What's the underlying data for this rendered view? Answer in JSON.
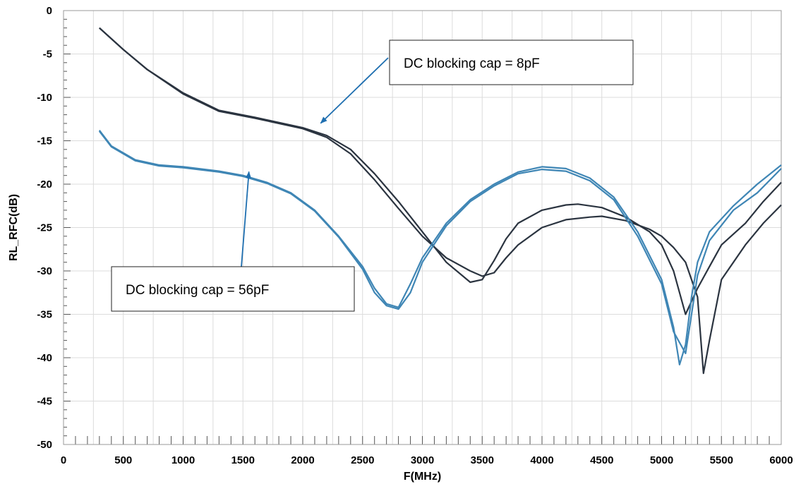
{
  "chart_data": {
    "type": "line",
    "title": "",
    "xlabel": "F(MHz)",
    "ylabel": "RL_RFC(dB)",
    "xlim": [
      0,
      6000
    ],
    "ylim": [
      -50,
      0
    ],
    "x_ticks": [
      0,
      500,
      1000,
      1500,
      2000,
      2500,
      3000,
      3500,
      4000,
      4500,
      5000,
      5500,
      6000
    ],
    "y_ticks": [
      0,
      -5,
      -10,
      -15,
      -20,
      -25,
      -30,
      -35,
      -40,
      -45,
      -50
    ],
    "grid": true,
    "colors": {
      "cap_8pF": "#2b3440",
      "cap_56pF": "#3f86b5",
      "arrow": "#1f6fb0",
      "grid": "#dcdcdc"
    },
    "series": [
      {
        "group": "cap_8pF",
        "x": [
          300,
          500,
          700,
          1000,
          1300,
          1600,
          2000,
          2200,
          2400,
          2600,
          2800,
          3000,
          3200,
          3400,
          3500,
          3600,
          3700,
          3800,
          4000,
          4200,
          4300,
          4500,
          4700,
          4900,
          5000,
          5100,
          5200,
          5300,
          5400,
          5500,
          5700,
          5850,
          6000
        ],
        "y": [
          -2.0,
          -4.5,
          -6.8,
          -9.5,
          -11.5,
          -12.3,
          -13.5,
          -14.4,
          -16.0,
          -18.8,
          -22.0,
          -25.5,
          -29.0,
          -31.3,
          -31.0,
          -28.8,
          -26.3,
          -24.5,
          -23.0,
          -22.4,
          -22.3,
          -22.7,
          -23.8,
          -25.5,
          -27.0,
          -30.0,
          -35.0,
          -32.0,
          -29.5,
          -27.0,
          -24.5,
          -22.0,
          -19.8
        ]
      },
      {
        "group": "cap_8pF",
        "x": [
          300,
          500,
          700,
          1000,
          1300,
          1600,
          2000,
          2200,
          2400,
          2600,
          2800,
          3000,
          3200,
          3400,
          3500,
          3600,
          3700,
          3800,
          4000,
          4200,
          4400,
          4500,
          4700,
          4900,
          5000,
          5100,
          5200,
          5300,
          5350,
          5400,
          5500,
          5700,
          5850,
          6000
        ],
        "y": [
          -2.0,
          -4.5,
          -6.8,
          -9.6,
          -11.6,
          -12.4,
          -13.6,
          -14.6,
          -16.5,
          -19.5,
          -22.8,
          -26.0,
          -28.5,
          -30.0,
          -30.6,
          -30.2,
          -28.5,
          -27.0,
          -25.0,
          -24.1,
          -23.8,
          -23.7,
          -24.2,
          -25.2,
          -26.0,
          -27.3,
          -29.0,
          -33.0,
          -41.8,
          -38.0,
          -31.0,
          -27.0,
          -24.5,
          -22.4
        ]
      },
      {
        "group": "cap_56pF",
        "x": [
          300,
          400,
          600,
          800,
          1000,
          1300,
          1500,
          1700,
          1900,
          2100,
          2300,
          2500,
          2600,
          2700,
          2800,
          2900,
          3000,
          3200,
          3400,
          3600,
          3800,
          4000,
          4200,
          4400,
          4600,
          4800,
          5000,
          5100,
          5150,
          5200,
          5250,
          5300,
          5400,
          5600,
          5800,
          6000
        ],
        "y": [
          -13.8,
          -15.6,
          -17.2,
          -17.8,
          -18.0,
          -18.5,
          -19.0,
          -19.8,
          -21.0,
          -23.0,
          -26.0,
          -29.5,
          -32.0,
          -33.8,
          -34.2,
          -31.5,
          -28.5,
          -24.5,
          -21.8,
          -20.0,
          -18.6,
          -18.0,
          -18.2,
          -19.3,
          -21.5,
          -25.5,
          -31.0,
          -36.5,
          -40.8,
          -38.5,
          -33.0,
          -29.0,
          -25.5,
          -22.5,
          -20.0,
          -17.8
        ]
      },
      {
        "group": "cap_56pF",
        "x": [
          300,
          400,
          600,
          800,
          1000,
          1300,
          1500,
          1700,
          1900,
          2100,
          2300,
          2500,
          2600,
          2700,
          2800,
          2900,
          3000,
          3200,
          3400,
          3600,
          3800,
          4000,
          4200,
          4400,
          4600,
          4800,
          5000,
          5100,
          5200,
          5250,
          5300,
          5400,
          5600,
          5800,
          6000
        ],
        "y": [
          -13.9,
          -15.7,
          -17.3,
          -17.9,
          -18.1,
          -18.6,
          -19.1,
          -19.9,
          -21.1,
          -23.1,
          -26.1,
          -29.8,
          -32.5,
          -34.0,
          -34.4,
          -32.5,
          -29.0,
          -24.8,
          -22.0,
          -20.2,
          -18.8,
          -18.3,
          -18.5,
          -19.6,
          -21.8,
          -26.0,
          -31.5,
          -37.0,
          -39.5,
          -35.0,
          -30.5,
          -26.5,
          -23.0,
          -21.0,
          -18.2
        ]
      }
    ],
    "annotations": [
      {
        "text": "DC blocking cap = 8pF",
        "target_x": 2150,
        "target_y": -13.3,
        "series_group": "cap_8pF"
      },
      {
        "text": "DC blocking cap = 56pF",
        "target_x": 1550,
        "target_y": -18.9,
        "series_group": "cap_56pF"
      }
    ]
  }
}
